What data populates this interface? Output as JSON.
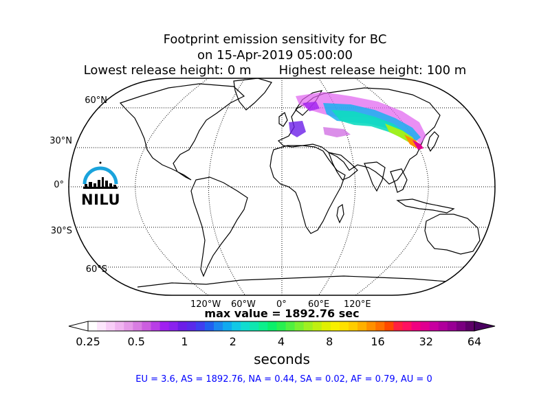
{
  "title": {
    "line1": "Footprint emission sensitivity for BC",
    "line2": "on 15-Apr-2019 05:00:00",
    "line3": "Lowest release height: 0 m       Highest release height: 100 m"
  },
  "map": {
    "projection": "Robinson",
    "lat_labels": [
      "60°N",
      "30°N",
      "0°",
      "30°S",
      "60°S"
    ],
    "lon_labels": [
      "120°W",
      "60°W",
      "0°",
      "60°E",
      "120°E"
    ],
    "logo_text": "NILU",
    "max_value_text": "max value = 1892.76 sec"
  },
  "colorbar": {
    "tick_labels": [
      "0.25",
      "0.5",
      "1",
      "2",
      "4",
      "8",
      "16",
      "32",
      "64"
    ],
    "label": "seconds",
    "colors": [
      "#ffffff",
      "#fde6fc",
      "#f8cdf7",
      "#f0b4f0",
      "#e59ae8",
      "#d87de2",
      "#cc5ee0",
      "#b83ee6",
      "#a020f0",
      "#8a22ee",
      "#6c1ee8",
      "#5a2aea",
      "#3f3ff0",
      "#2060f0",
      "#1a88f0",
      "#10aaf0",
      "#12c8e6",
      "#10dcd0",
      "#0ee6b0",
      "#0cf08c",
      "#0af06a",
      "#28f050",
      "#50f040",
      "#7af030",
      "#a0f020",
      "#c0f010",
      "#e0f000",
      "#f8f000",
      "#ffe000",
      "#ffcc00",
      "#ffb000",
      "#ff9000",
      "#ff7000",
      "#ff4800",
      "#ff2040",
      "#ff1060",
      "#f00080",
      "#e00090",
      "#c800a0",
      "#b0009c",
      "#980094",
      "#7a0080",
      "#5e0068"
    ],
    "over_color": "#4a0060",
    "under_color": "#ffffff"
  },
  "footer": {
    "stats": "EU = 3.6,  AS = 1892.76,  NA = 0.44,  SA = 0.02,  AF = 0.79,  AU = 0"
  }
}
